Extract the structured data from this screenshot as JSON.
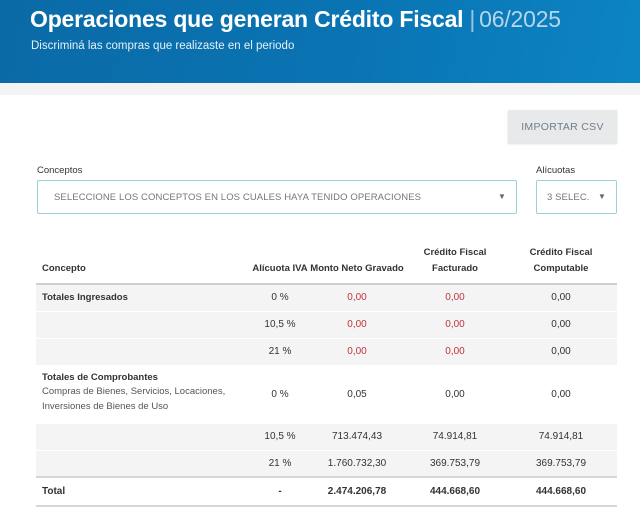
{
  "header": {
    "title": "Operaciones que generan Crédito Fiscal",
    "separator": "|",
    "period": "06/2025",
    "subtitle": "Discriminá las compras que realizaste en el periodo"
  },
  "toolbar": {
    "import_csv_label": "IMPORTAR CSV"
  },
  "filters": {
    "conceptos_label": "Conceptos",
    "conceptos_placeholder": "SELECCIONE LOS CONCEPTOS EN LOS CUALES HAYA TENIDO OPERACIONES",
    "alicuotas_label": "Alícuotas",
    "alicuotas_value": "3 SELEC."
  },
  "table": {
    "headers": [
      "Concepto",
      "Alícuota IVA",
      "Monto Neto Gravado",
      "Crédito Fiscal Facturado",
      "Crédito Fiscal Computable"
    ],
    "totales_ingresados": {
      "title": "Totales Ingresados",
      "rows": [
        {
          "alicuota": "0 %",
          "monto": "0,00",
          "facturado": "0,00",
          "computable": "0,00"
        },
        {
          "alicuota": "10,5 %",
          "monto": "0,00",
          "facturado": "0,00",
          "computable": "0,00"
        },
        {
          "alicuota": "21 %",
          "monto": "0,00",
          "facturado": "0,00",
          "computable": "0,00"
        }
      ]
    },
    "totales_comprobantes": {
      "title": "Totales de Comprobantes",
      "description": "Compras de Bienes, Servicios, Locaciones, Inversiones de Bienes de Uso",
      "rows": [
        {
          "alicuota": "0 %",
          "monto": "0,05",
          "facturado": "0,00",
          "computable": "0,00"
        },
        {
          "alicuota": "10,5 %",
          "monto": "713.474,43",
          "facturado": "74.914,81",
          "computable": "74.914,81"
        },
        {
          "alicuota": "21 %",
          "monto": "1.760.732,30",
          "facturado": "369.753,79",
          "computable": "369.753,79"
        }
      ]
    },
    "total": {
      "label": "Total",
      "alicuota": "-",
      "monto": "2.474.206,78",
      "facturado": "444.668,60",
      "computable": "444.668,60"
    }
  },
  "colors": {
    "header_blue": "#0a6aa6",
    "red_values": "#c0353b",
    "select_border": "#9bd0d8"
  }
}
